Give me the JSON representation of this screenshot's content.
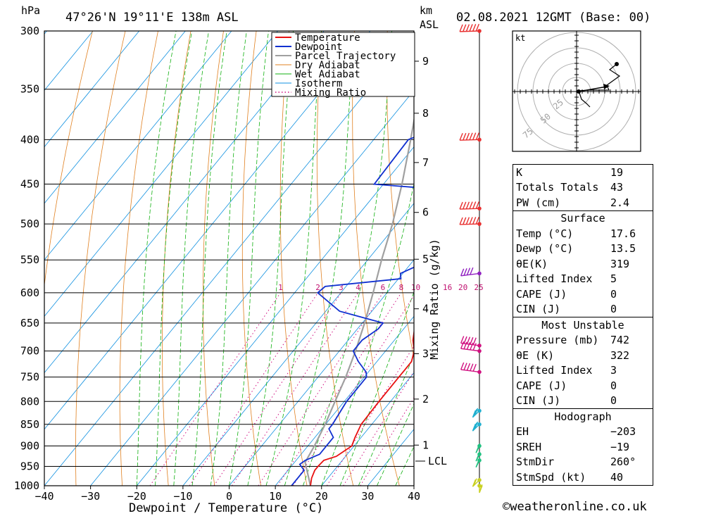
{
  "header": {
    "hpa": "hPa",
    "location": "47°26'N  19°11'E  138m  ASL",
    "km": "km",
    "asl": "ASL",
    "datetime": "02.08.2021  12GMT  (Base: 00)"
  },
  "legend": [
    {
      "label": "Temperature",
      "color": "#e81010",
      "style": "solid"
    },
    {
      "label": "Dewpoint",
      "color": "#1030d0",
      "style": "solid"
    },
    {
      "label": "Parcel Trajectory",
      "color": "#a0a0a0",
      "style": "solid"
    },
    {
      "label": "Dry Adiabat",
      "color": "#e08020",
      "style": "solid"
    },
    {
      "label": "Wet Adiabat",
      "color": "#10b010",
      "style": "solid"
    },
    {
      "label": "Isotherm",
      "color": "#1090e0",
      "style": "solid"
    },
    {
      "label": "Mixing Ratio",
      "color": "#d01080",
      "style": "dotted"
    }
  ],
  "xaxis": {
    "label": "Dewpoint / Temperature (°C)",
    "ticks": [
      "−40",
      "−30",
      "−20",
      "−10",
      "0",
      "10",
      "20",
      "30",
      "40"
    ]
  },
  "km_ticks": [
    {
      "label": "9",
      "p": 325
    },
    {
      "label": "8",
      "p": 373
    },
    {
      "label": "7",
      "p": 425
    },
    {
      "label": "6",
      "p": 485
    },
    {
      "label": "5",
      "p": 549
    },
    {
      "label": "4",
      "p": 626
    },
    {
      "label": "3",
      "p": 705
    },
    {
      "label": "2",
      "p": 795
    },
    {
      "label": "1",
      "p": 898
    }
  ],
  "lcl_label": "LCL",
  "mixing_ratio_axis_label": "Mixing Ratio (g/kg)",
  "mixing_ratio_labels": [
    "1",
    "2",
    "3",
    "4",
    "6",
    "8",
    "10",
    "16",
    "20",
    "25"
  ],
  "chart_data": {
    "type": "line",
    "title": "",
    "xlabel": "Dewpoint / Temperature (°C)",
    "ylabel": "hPa",
    "xlim": [
      -40,
      40
    ],
    "ylim": [
      1000,
      300
    ],
    "y_scale": "log",
    "pressure_ticks": [
      300,
      350,
      400,
      450,
      500,
      550,
      600,
      650,
      700,
      750,
      800,
      850,
      900,
      950,
      1000
    ],
    "mixing_ratio_gkg": [
      1,
      2,
      3,
      4,
      6,
      8,
      10,
      16,
      20,
      25
    ],
    "series": [
      {
        "name": "Temperature",
        "color": "#e81010",
        "p": [
          1000,
          980,
          960,
          950,
          935,
          925,
          900,
          880,
          850,
          800,
          750,
          735,
          720,
          700,
          680,
          650,
          600,
          550,
          500,
          450,
          400,
          380,
          350,
          330,
          300
        ],
        "t": [
          17.6,
          16.5,
          15.8,
          15.8,
          16.0,
          18.0,
          19.5,
          18.7,
          17.7,
          17.5,
          17.5,
          17.5,
          17.5,
          16.2,
          14.0,
          11.5,
          10.0,
          8.5,
          3.0,
          2.0,
          -0.5,
          -4.0,
          -8.5,
          -10.5,
          -16.0
        ]
      },
      {
        "name": "Dewpoint",
        "color": "#1030d0",
        "p": [
          1000,
          960,
          945,
          935,
          920,
          900,
          880,
          860,
          850,
          800,
          750,
          740,
          720,
          700,
          680,
          660,
          650,
          630,
          600,
          590,
          578,
          570,
          560,
          550,
          540,
          530,
          520,
          510,
          505,
          500,
          490,
          480,
          470,
          460,
          450,
          400,
          390,
          370,
          350,
          310,
          300
        ],
        "t": [
          13.5,
          13.5,
          11.5,
          12.0,
          14.0,
          14.0,
          14.0,
          11.5,
          11.5,
          10.5,
          10.5,
          9.5,
          6.0,
          3.0,
          3.0,
          4.5,
          4.5,
          -7.0,
          -15.0,
          -14.5,
          0.5,
          -0.5,
          1.5,
          2.0,
          2.5,
          3.5,
          4.0,
          5.0,
          2.5,
          3.0,
          -6.0,
          2.0,
          7.0,
          2.0,
          -22.0,
          -22.5,
          -19.0,
          -10.5,
          -15.0,
          -13.0,
          -11.0
        ]
      },
      {
        "name": "Parcel Trajectory",
        "color": "#a0a0a0",
        "p": [
          1000,
          940,
          900,
          850,
          800,
          750,
          700,
          650,
          600,
          550,
          500,
          450,
          400,
          350,
          300
        ],
        "t": [
          17.6,
          12.3,
          11.4,
          9.9,
          8.0,
          6.0,
          3.5,
          0.5,
          -3.0,
          -7.0,
          -11.0,
          -16.0,
          -22.0,
          -29.0,
          -37.0
        ]
      }
    ],
    "wind_barbs": [
      {
        "p": 300,
        "dir": 265,
        "spd": 60
      },
      {
        "p": 400,
        "dir": 265,
        "spd": 55
      },
      {
        "p": 480,
        "dir": 265,
        "spd": 55
      },
      {
        "p": 500,
        "dir": 265,
        "spd": 55
      },
      {
        "p": 570,
        "dir": 250,
        "spd": 40
      },
      {
        "p": 690,
        "dir": 290,
        "spd": 50
      },
      {
        "p": 700,
        "dir": 290,
        "spd": 50
      },
      {
        "p": 740,
        "dir": 290,
        "spd": 50
      },
      {
        "p": 820,
        "dir": 200,
        "spd": 30
      },
      {
        "p": 850,
        "dir": 200,
        "spd": 25
      },
      {
        "p": 900,
        "dir": 190,
        "spd": 25
      },
      {
        "p": 920,
        "dir": 190,
        "spd": 25
      },
      {
        "p": 935,
        "dir": 190,
        "spd": 25
      },
      {
        "p": 985,
        "dir": 160,
        "spd": 15
      },
      {
        "p": 1000,
        "dir": 180,
        "spd": 15
      }
    ]
  },
  "hodograph": {
    "units": "kt",
    "rings": [
      "25",
      "50",
      "75"
    ]
  },
  "indices": [
    {
      "label": "K",
      "value": "19"
    },
    {
      "label": "Totals Totals",
      "value": "43"
    },
    {
      "label": "PW (cm)",
      "value": "2.4"
    }
  ],
  "surface": {
    "title": "Surface",
    "rows": [
      {
        "label": "Temp (°C)",
        "value": "17.6"
      },
      {
        "label": "Dewp (°C)",
        "value": "13.5"
      },
      {
        "label": "θE(K)",
        "value": "319"
      },
      {
        "label": "Lifted Index",
        "value": "5"
      },
      {
        "label": "CAPE (J)",
        "value": "0"
      },
      {
        "label": "CIN (J)",
        "value": "0"
      }
    ]
  },
  "most_unstable": {
    "title": "Most Unstable",
    "rows": [
      {
        "label": "Pressure (mb)",
        "value": "742"
      },
      {
        "label": "θE (K)",
        "value": "322"
      },
      {
        "label": "Lifted Index",
        "value": "3"
      },
      {
        "label": "CAPE (J)",
        "value": "0"
      },
      {
        "label": "CIN (J)",
        "value": "0"
      }
    ]
  },
  "hodograph_table": {
    "title": "Hodograph",
    "rows": [
      {
        "label": "EH",
        "value": "−203"
      },
      {
        "label": "SREH",
        "value": "−19"
      },
      {
        "label": "StmDir",
        "value": "260°"
      },
      {
        "label": "StmSpd (kt)",
        "value": "40"
      }
    ]
  },
  "footer": "©weatheronline.co.uk"
}
